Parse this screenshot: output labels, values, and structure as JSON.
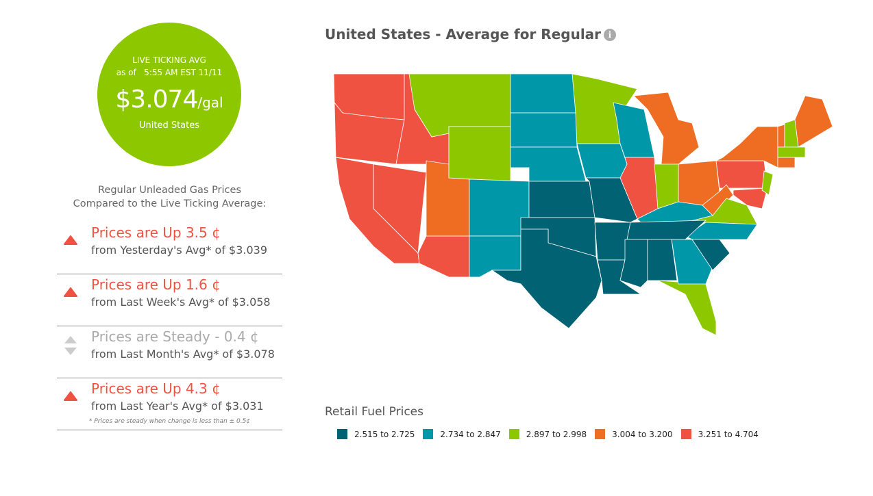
{
  "live": {
    "label": "LIVE TICKING AVG",
    "as_of": "as of   5:55 AM EST 11/11",
    "price": "$3.074",
    "unit": "/gal",
    "region": "United States"
  },
  "compare_heading_1": "Regular Unleaded Gas Prices",
  "compare_heading_2": "Compared to the Live Ticking Average:",
  "rows": [
    {
      "trend": "up",
      "headline": "Prices are Up 3.5 ¢",
      "sub": "from Yesterday's Avg* of $3.039"
    },
    {
      "trend": "up",
      "headline": "Prices are Up 1.6 ¢",
      "sub": "from Last Week's Avg* of $3.058"
    },
    {
      "trend": "steady",
      "headline": "Prices are Steady - 0.4 ¢",
      "sub": "from Last Month's Avg* of $3.078"
    },
    {
      "trend": "up",
      "headline": "Prices are Up 4.3 ¢",
      "sub": "from Last Year's Avg* of $3.031"
    }
  ],
  "footnote": "* Prices are steady when change is less than ± 0.5¢",
  "map_title": "United States - Average for Regular",
  "info_icon": "i",
  "legend_title": "Retail Fuel Prices",
  "legend": [
    {
      "range": "2.515 to 2.725",
      "color": "#006272"
    },
    {
      "range": "2.734 to 2.847",
      "color": "#0097a9"
    },
    {
      "range": "2.897 to 2.998",
      "color": "#8dc700"
    },
    {
      "range": "3.004 to 3.200",
      "color": "#ef6d22"
    },
    {
      "range": "3.251 to 4.704",
      "color": "#ef5241"
    }
  ],
  "states": {
    "WA": 4,
    "OR": 4,
    "CA": 4,
    "NV": 4,
    "ID": 4,
    "AZ": 4,
    "IL": 4,
    "PA": 4,
    "MD": 4,
    "UT": 3,
    "MI": 3,
    "OH": 3,
    "WV": 3,
    "NY": 3,
    "ME": 3,
    "VT": 3,
    "CT": 3,
    "MT": 2,
    "WY": 2,
    "MN": 2,
    "IN": 2,
    "VA": 2,
    "NH": 2,
    "MA": 2,
    "NJ": 2,
    "FL": 2,
    "ND": 1,
    "SD": 1,
    "NE": 1,
    "CO": 1,
    "NM": 1,
    "IA": 1,
    "WI": 1,
    "KY": 1,
    "NC": 1,
    "GA": 1,
    "KS": 0,
    "MO": 0,
    "OK": 0,
    "TX": 0,
    "AR": 0,
    "LA": 0,
    "TN": 0,
    "MS": 0,
    "AL": 0,
    "SC": 0
  }
}
